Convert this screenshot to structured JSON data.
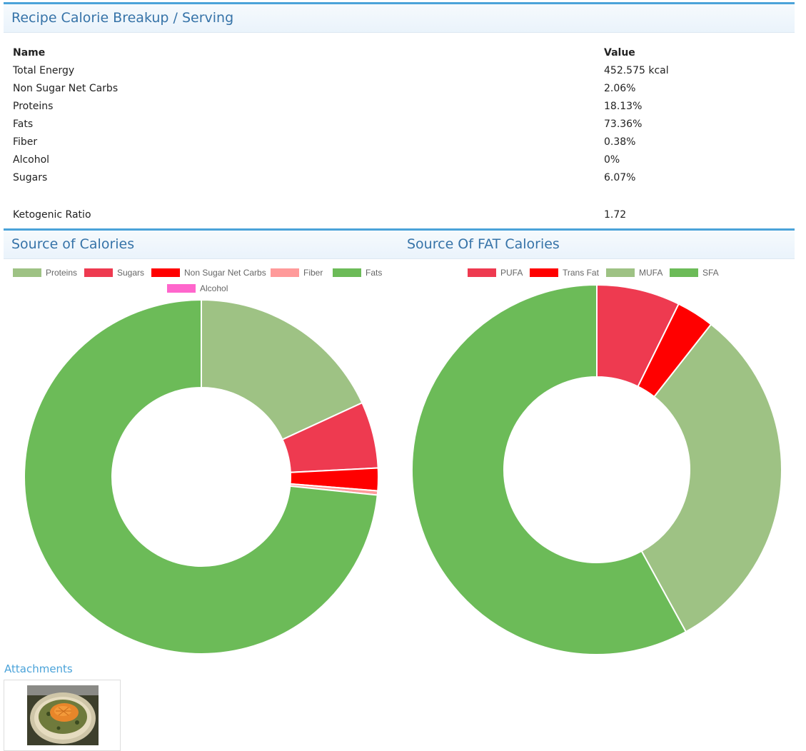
{
  "breakup": {
    "title": "Recipe Calorie Breakup / Serving",
    "col_name": "Name",
    "col_value": "Value",
    "rows": [
      {
        "name": "Total Energy",
        "value": "452.575 kcal"
      },
      {
        "name": "Non Sugar Net Carbs",
        "value": "2.06%"
      },
      {
        "name": "Proteins",
        "value": "18.13%"
      },
      {
        "name": "Fats",
        "value": "73.36%"
      },
      {
        "name": "Fiber",
        "value": "0.38%"
      },
      {
        "name": "Alcohol",
        "value": "0%"
      },
      {
        "name": "Sugars",
        "value": "6.07%"
      }
    ],
    "keto_label": "Ketogenic Ratio",
    "keto_value": "1.72"
  },
  "attachments": {
    "title": "Attachments"
  },
  "chart_data": [
    {
      "type": "pie",
      "title": "Source of Calories",
      "donut": true,
      "legend": "top",
      "categories": [
        "Proteins",
        "Sugars",
        "Non Sugar Net Carbs",
        "Fiber",
        "Fats",
        "Alcohol"
      ],
      "values": [
        18.13,
        6.07,
        2.06,
        0.38,
        73.36,
        0
      ],
      "colors": [
        "#9ec284",
        "#ee3a50",
        "#ff0000",
        "#ff9a9a",
        "#6cbb58",
        "#ff66cc"
      ]
    },
    {
      "type": "pie",
      "title": "Source Of FAT Calories",
      "donut": true,
      "legend": "top",
      "categories": [
        "PUFA",
        "Trans Fat",
        "MUFA",
        "SFA"
      ],
      "values": [
        7.3,
        3.3,
        31.4,
        58.0
      ],
      "colors": [
        "#ee3a50",
        "#ff0000",
        "#9ec284",
        "#6cbb58"
      ]
    }
  ]
}
